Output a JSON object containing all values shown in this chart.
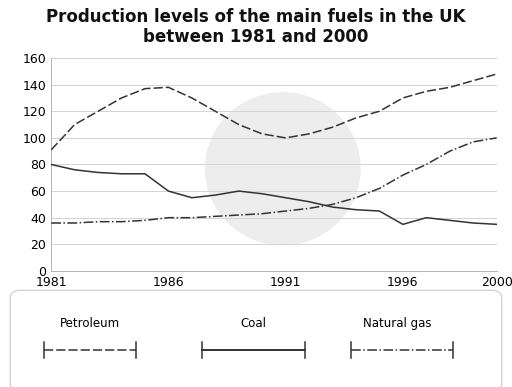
{
  "title": "Production levels of the main fuels in the UK\nbetween 1981 and 2000",
  "years": [
    1981,
    1982,
    1983,
    1984,
    1985,
    1986,
    1987,
    1988,
    1989,
    1990,
    1991,
    1992,
    1993,
    1994,
    1995,
    1996,
    1997,
    1998,
    1999,
    2000
  ],
  "petroleum": [
    80,
    76,
    74,
    73,
    73,
    60,
    55,
    57,
    60,
    58,
    55,
    52,
    48,
    46,
    45,
    35,
    40,
    38,
    36,
    35
  ],
  "coal": [
    91,
    110,
    120,
    130,
    137,
    138,
    130,
    120,
    110,
    103,
    100,
    103,
    108,
    115,
    120,
    130,
    135,
    138,
    143,
    148
  ],
  "natural_gas": [
    36,
    36,
    37,
    37,
    38,
    40,
    40,
    41,
    42,
    43,
    45,
    47,
    50,
    55,
    62,
    72,
    80,
    90,
    97,
    100
  ],
  "ylim": [
    0,
    160
  ],
  "yticks": [
    0,
    20,
    40,
    60,
    80,
    100,
    120,
    140,
    160
  ],
  "xticks": [
    1981,
    1986,
    1991,
    1996,
    2000
  ],
  "xlim": [
    1981,
    2000
  ],
  "bg_color": "#ffffff",
  "line_color": "#333333",
  "grid_color": "#cccccc",
  "watermark_color": "#d8d8d8",
  "title_fontsize": 12,
  "tick_fontsize": 9,
  "legend_fontsize": 8.5
}
